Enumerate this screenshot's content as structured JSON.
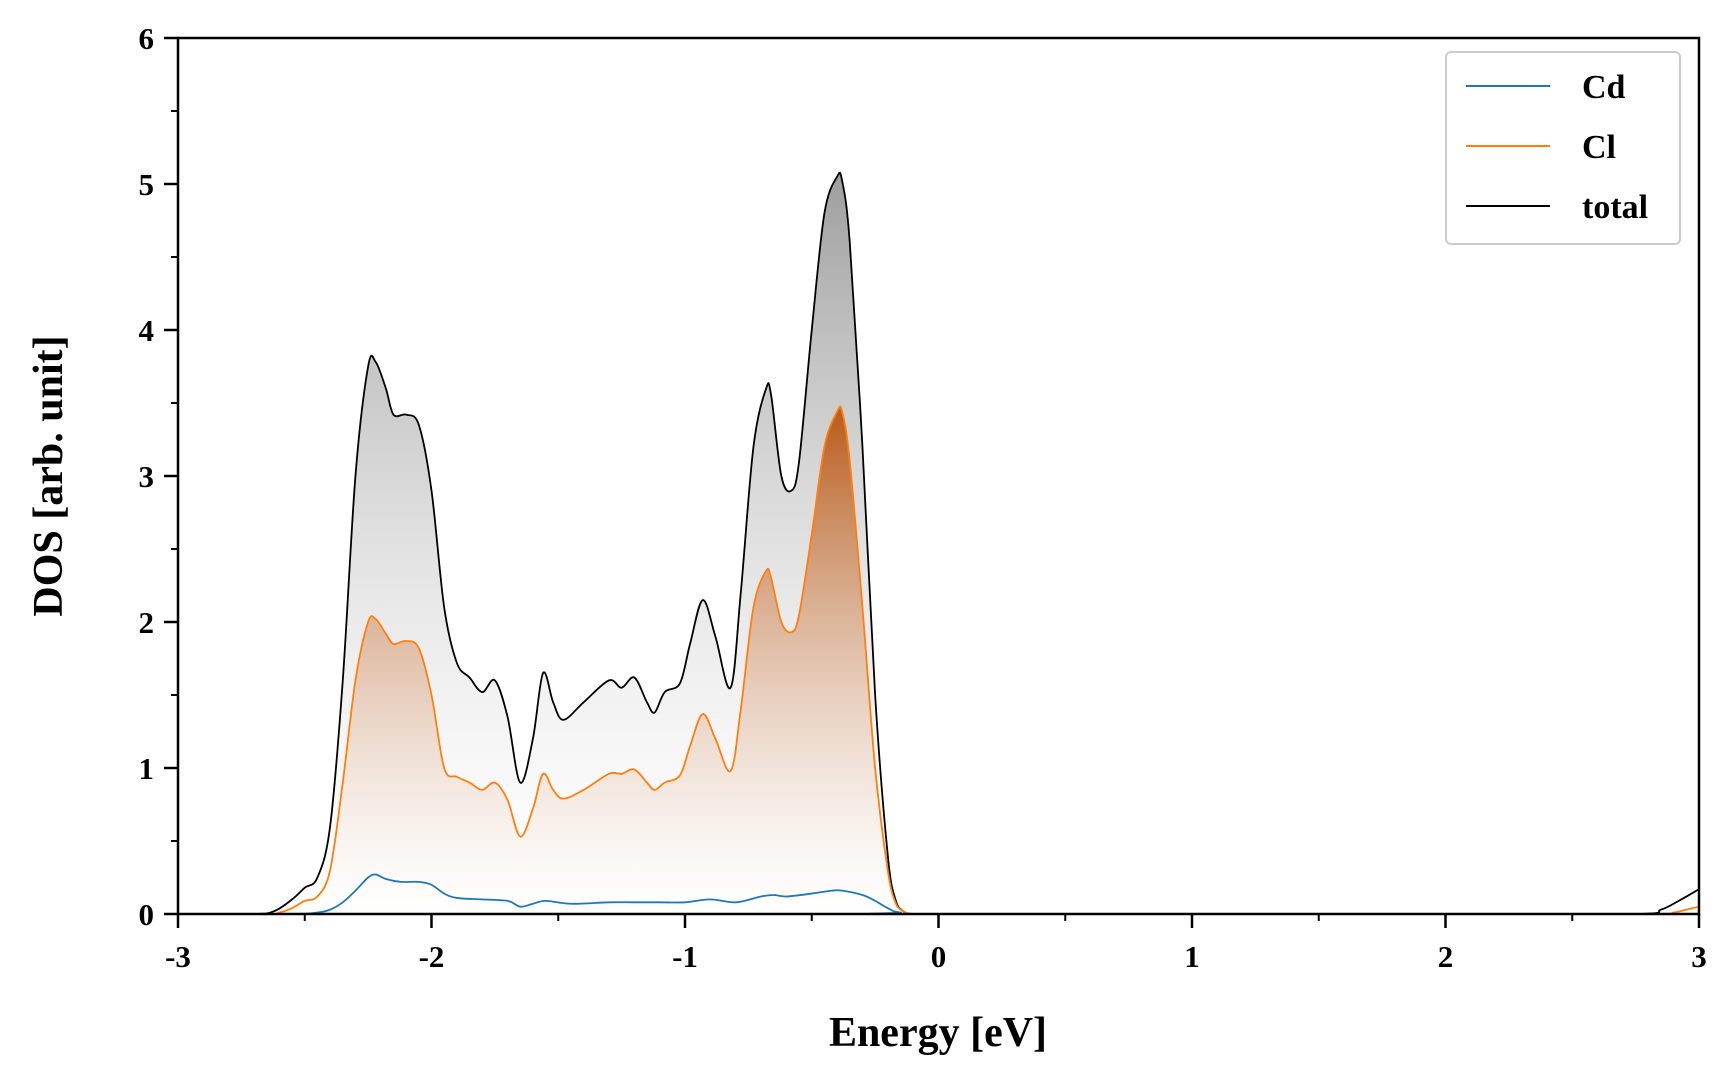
{
  "chart_data": {
    "type": "area",
    "xlabel": "Energy [eV]",
    "ylabel": "DOS [arb. unit]",
    "xlim": [
      -3,
      3
    ],
    "ylim": [
      0,
      6
    ],
    "x_ticks": [
      -3,
      -2,
      -1,
      0,
      1,
      2,
      3
    ],
    "x_tick_labels": [
      "-3",
      "-2",
      "-1",
      "0",
      "1",
      "2",
      "3"
    ],
    "y_ticks": [
      0,
      1,
      2,
      3,
      4,
      5,
      6
    ],
    "y_tick_labels": [
      "0",
      "1",
      "2",
      "3",
      "4",
      "5",
      "6"
    ],
    "grid": false,
    "legend_position": "top-right",
    "legend": [
      "Cd",
      "Cl",
      "total"
    ],
    "series": [
      {
        "name": "total",
        "color": "#000000",
        "fill": "gradient-gray",
        "x": [
          -3.0,
          -2.7,
          -2.62,
          -2.55,
          -2.5,
          -2.45,
          -2.4,
          -2.35,
          -2.3,
          -2.25,
          -2.22,
          -2.18,
          -2.15,
          -2.1,
          -2.05,
          -2.0,
          -1.95,
          -1.9,
          -1.85,
          -1.8,
          -1.75,
          -1.7,
          -1.65,
          -1.6,
          -1.56,
          -1.52,
          -1.48,
          -1.4,
          -1.3,
          -1.25,
          -1.2,
          -1.15,
          -1.12,
          -1.08,
          -1.02,
          -0.98,
          -0.93,
          -0.88,
          -0.82,
          -0.78,
          -0.73,
          -0.68,
          -0.66,
          -0.62,
          -0.58,
          -0.55,
          -0.5,
          -0.45,
          -0.4,
          -0.38,
          -0.35,
          -0.3,
          -0.25,
          -0.2,
          -0.17,
          -0.14,
          -0.1,
          0.0,
          1.0,
          2.0,
          2.75,
          2.85,
          2.92,
          3.0
        ],
        "y": [
          0.0,
          0.0,
          0.02,
          0.1,
          0.18,
          0.25,
          0.6,
          1.6,
          3.0,
          3.75,
          3.78,
          3.6,
          3.42,
          3.42,
          3.35,
          2.9,
          2.1,
          1.72,
          1.62,
          1.52,
          1.6,
          1.35,
          0.9,
          1.2,
          1.65,
          1.45,
          1.33,
          1.45,
          1.6,
          1.55,
          1.62,
          1.45,
          1.38,
          1.52,
          1.58,
          1.85,
          2.15,
          1.9,
          1.55,
          2.2,
          3.2,
          3.6,
          3.55,
          3.0,
          2.9,
          3.1,
          4.0,
          4.8,
          5.05,
          5.02,
          4.6,
          3.2,
          1.5,
          0.4,
          0.1,
          0.02,
          0.0,
          0.0,
          0.0,
          0.0,
          0.0,
          0.03,
          0.09,
          0.17
        ]
      },
      {
        "name": "Cl",
        "color": "#ff7f0e",
        "fill": "gradient-orange",
        "x": [
          -3.0,
          -2.65,
          -2.6,
          -2.55,
          -2.5,
          -2.45,
          -2.4,
          -2.35,
          -2.3,
          -2.25,
          -2.22,
          -2.18,
          -2.15,
          -2.1,
          -2.05,
          -2.0,
          -1.95,
          -1.9,
          -1.85,
          -1.8,
          -1.75,
          -1.7,
          -1.65,
          -1.6,
          -1.56,
          -1.52,
          -1.48,
          -1.4,
          -1.3,
          -1.25,
          -1.2,
          -1.15,
          -1.12,
          -1.08,
          -1.02,
          -0.98,
          -0.93,
          -0.88,
          -0.82,
          -0.78,
          -0.73,
          -0.68,
          -0.66,
          -0.62,
          -0.58,
          -0.55,
          -0.5,
          -0.45,
          -0.4,
          -0.38,
          -0.35,
          -0.3,
          -0.25,
          -0.2,
          -0.17,
          -0.14,
          -0.1,
          0.0,
          1.0,
          2.0,
          2.8,
          2.9,
          2.95,
          3.0
        ],
        "y": [
          0.0,
          0.0,
          0.01,
          0.04,
          0.09,
          0.12,
          0.3,
          0.9,
          1.6,
          2.0,
          2.02,
          1.92,
          1.85,
          1.87,
          1.82,
          1.5,
          1.0,
          0.94,
          0.9,
          0.85,
          0.9,
          0.78,
          0.53,
          0.72,
          0.96,
          0.85,
          0.79,
          0.85,
          0.96,
          0.96,
          0.99,
          0.9,
          0.85,
          0.9,
          0.95,
          1.15,
          1.37,
          1.2,
          0.98,
          1.4,
          2.1,
          2.35,
          2.3,
          2.0,
          1.93,
          2.05,
          2.6,
          3.2,
          3.44,
          3.44,
          3.1,
          2.1,
          1.0,
          0.3,
          0.08,
          0.02,
          0.0,
          0.0,
          0.0,
          0.0,
          0.0,
          0.01,
          0.03,
          0.05
        ]
      },
      {
        "name": "Cd",
        "color": "#1f77b4",
        "fill": "none",
        "x": [
          -3.0,
          -2.55,
          -2.45,
          -2.4,
          -2.35,
          -2.3,
          -2.25,
          -2.22,
          -2.18,
          -2.12,
          -2.05,
          -2.0,
          -1.95,
          -1.9,
          -1.8,
          -1.7,
          -1.65,
          -1.6,
          -1.55,
          -1.45,
          -1.3,
          -1.2,
          -1.1,
          -1.0,
          -0.9,
          -0.8,
          -0.7,
          -0.65,
          -0.6,
          -0.5,
          -0.42,
          -0.38,
          -0.3,
          -0.25,
          -0.2,
          -0.15,
          0.0,
          3.0
        ],
        "y": [
          0.0,
          0.0,
          0.01,
          0.03,
          0.08,
          0.16,
          0.25,
          0.27,
          0.24,
          0.22,
          0.22,
          0.2,
          0.14,
          0.11,
          0.1,
          0.09,
          0.05,
          0.07,
          0.09,
          0.07,
          0.08,
          0.08,
          0.08,
          0.08,
          0.1,
          0.08,
          0.12,
          0.13,
          0.12,
          0.14,
          0.16,
          0.16,
          0.13,
          0.09,
          0.04,
          0.01,
          0.0,
          0.0
        ]
      }
    ]
  }
}
